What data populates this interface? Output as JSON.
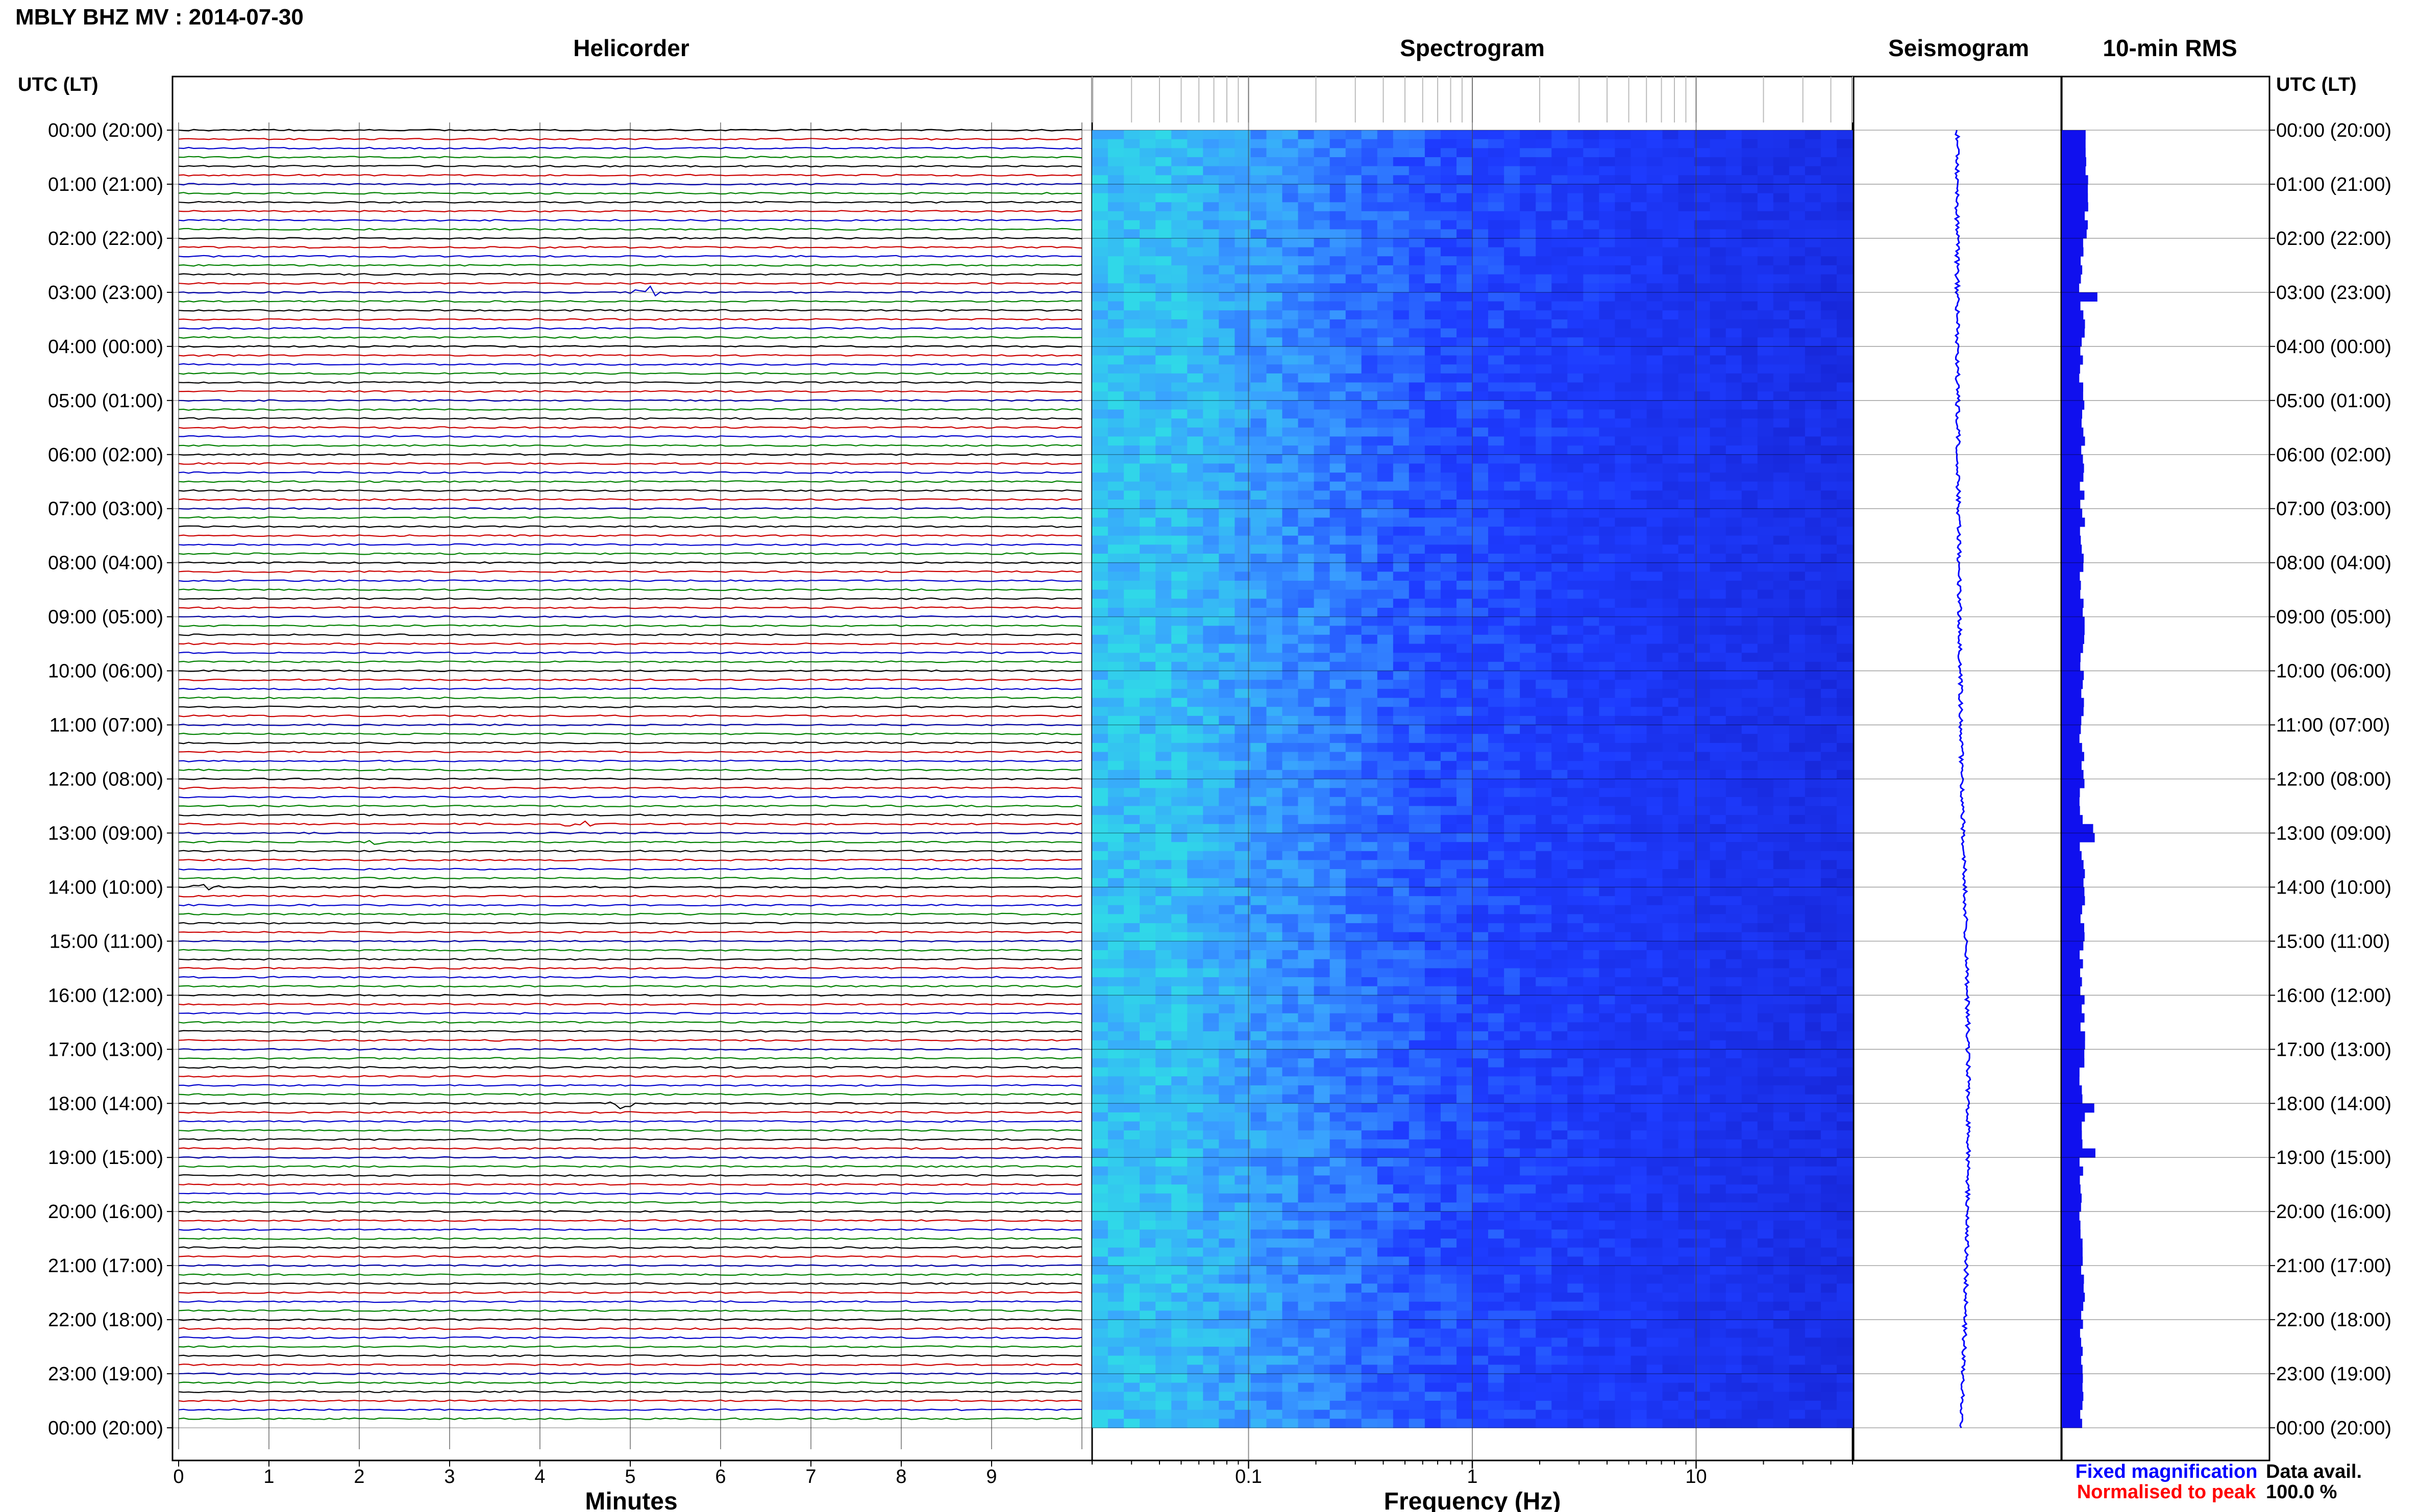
{
  "title": "MBLY BHZ MV : 2014-07-30",
  "panels": {
    "helicorder": "Helicorder",
    "spectrogram": "Spectrogram",
    "seismogram": "Seismogram",
    "rms": "10-min RMS"
  },
  "time_header": "UTC (LT)",
  "time_labels": [
    "00:00 (20:00)",
    "01:00 (21:00)",
    "02:00 (22:00)",
    "03:00 (23:00)",
    "04:00 (00:00)",
    "05:00 (01:00)",
    "06:00 (02:00)",
    "07:00 (03:00)",
    "08:00 (04:00)",
    "09:00 (05:00)",
    "10:00 (06:00)",
    "11:00 (07:00)",
    "12:00 (08:00)",
    "13:00 (09:00)",
    "14:00 (10:00)",
    "15:00 (11:00)",
    "16:00 (12:00)",
    "17:00 (13:00)",
    "18:00 (14:00)",
    "19:00 (15:00)",
    "20:00 (16:00)",
    "21:00 (17:00)",
    "22:00 (18:00)",
    "23:00 (19:00)",
    "00:00 (20:00)"
  ],
  "legend": {
    "fixed": "Fixed magnification",
    "normalised": "Normalised to peak",
    "fixed_color": "#0000ff",
    "normalised_color": "#ff0000"
  },
  "data_avail": {
    "label": "Data avail.",
    "value": "100.0 %"
  },
  "colors": {
    "trace_cycle": [
      "#000000",
      "#cc0000",
      "#0000cc",
      "#008000"
    ],
    "spec_low": "#1e3cff",
    "spec_mid": "#3aa0ff",
    "spec_high": "#30d8e8",
    "rms_bar": "#1010ee"
  },
  "chart_data": [
    {
      "type": "line",
      "panel": "Helicorder",
      "xlabel": "Minutes",
      "xticks": [
        "0",
        "1",
        "2",
        "3",
        "4",
        "5",
        "6",
        "7",
        "8",
        "9"
      ],
      "xlim": [
        0,
        10
      ],
      "rows": 144,
      "row_minutes": 10,
      "grid": true
    },
    {
      "type": "heatmap",
      "panel": "Spectrogram",
      "xlabel": "Frequency (Hz)",
      "xscale": "log",
      "xticks": [
        "0.1",
        "1",
        "10"
      ],
      "xlim": [
        0.02,
        50
      ],
      "grid": true
    },
    {
      "type": "line",
      "panel": "Seismogram",
      "description_color": "blue"
    },
    {
      "type": "bar",
      "panel": "10-min RMS",
      "orientation": "horizontal",
      "events_hours": [
        3.0,
        12.9,
        13.0,
        17.95,
        18.8
      ]
    }
  ]
}
